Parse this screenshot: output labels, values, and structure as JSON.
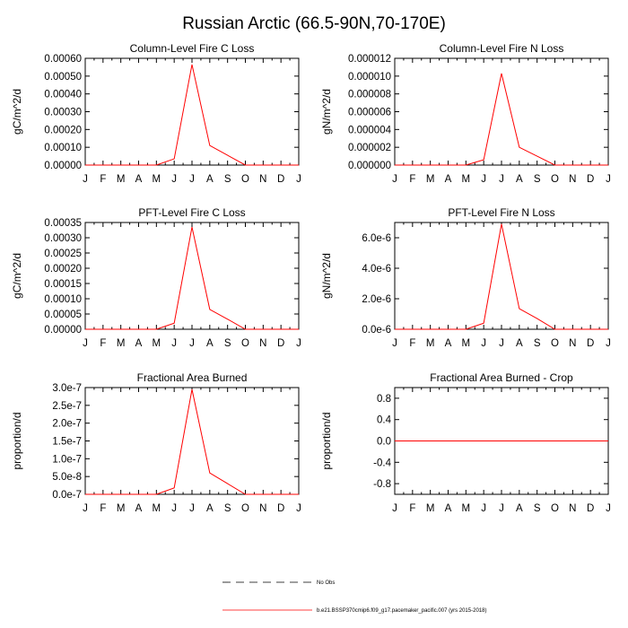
{
  "title": "Russian Arctic (66.5-90N,70-170E)",
  "colors": {
    "series": "#ff0000",
    "axis": "#000000"
  },
  "legend": [
    {
      "label": "No Obs",
      "style": "dashed",
      "color": "#000000"
    },
    {
      "label": "b.e21.BSSP370cmip6.f09_g17.pacemaker_pacific.007 (yrs 2015-2018)",
      "style": "solid",
      "color": "#ff0000"
    }
  ],
  "chart_data": [
    {
      "type": "line",
      "title": "Column-Level Fire C Loss",
      "xlabel": "",
      "ylabel": "gC/m^2/d",
      "categories": [
        "J",
        "F",
        "M",
        "A",
        "M",
        "J",
        "J",
        "A",
        "S",
        "O",
        "N",
        "D",
        "J"
      ],
      "ylim": [
        0,
        0.0006
      ],
      "yticks": [
        0,
        0.0001,
        0.0002,
        0.0003,
        0.0004,
        0.0005,
        0.0006
      ],
      "yticklabels": [
        "0.00000",
        "0.00010",
        "0.00020",
        "0.00030",
        "0.00040",
        "0.00050",
        "0.00060"
      ],
      "series": [
        {
          "name": "b.e21.BSSP370cmip6.f09_g17.pacemaker_pacific.007 (yrs 2015-2018)",
          "values": [
            0,
            0,
            0,
            0,
            0,
            3.5e-05,
            0.000565,
            0.00011,
            5.5e-05,
            0,
            0,
            0,
            0
          ]
        }
      ]
    },
    {
      "type": "line",
      "title": "Column-Level Fire N Loss",
      "xlabel": "",
      "ylabel": "gN/m^2/d",
      "categories": [
        "J",
        "F",
        "M",
        "A",
        "M",
        "J",
        "J",
        "A",
        "S",
        "O",
        "N",
        "D",
        "J"
      ],
      "ylim": [
        0,
        1.2e-05
      ],
      "yticks": [
        0,
        2e-06,
        4e-06,
        6e-06,
        8e-06,
        1e-05,
        1.2e-05
      ],
      "yticklabels": [
        "0.000000",
        "0.000002",
        "0.000004",
        "0.000006",
        "0.000008",
        "0.000010",
        "0.000012"
      ],
      "series": [
        {
          "name": "b.e21.BSSP370cmip6.f09_g17.pacemaker_pacific.007 (yrs 2015-2018)",
          "values": [
            0,
            0,
            0,
            0,
            0,
            6e-07,
            1.03e-05,
            2e-06,
            1e-06,
            0,
            0,
            0,
            0
          ]
        }
      ]
    },
    {
      "type": "line",
      "title": "PFT-Level Fire C Loss",
      "xlabel": "",
      "ylabel": "gC/m^2/d",
      "categories": [
        "J",
        "F",
        "M",
        "A",
        "M",
        "J",
        "J",
        "A",
        "S",
        "O",
        "N",
        "D",
        "J"
      ],
      "ylim": [
        0,
        0.00035
      ],
      "yticks": [
        0,
        5e-05,
        0.0001,
        0.00015,
        0.0002,
        0.00025,
        0.0003,
        0.00035
      ],
      "yticklabels": [
        "0.00000",
        "0.00005",
        "0.00010",
        "0.00015",
        "0.00020",
        "0.00025",
        "0.00030",
        "0.00035"
      ],
      "series": [
        {
          "name": "b.e21.BSSP370cmip6.f09_g17.pacemaker_pacific.007 (yrs 2015-2018)",
          "values": [
            0,
            0,
            0,
            0,
            0,
            2e-05,
            0.000335,
            6.5e-05,
            3.3e-05,
            0,
            0,
            0,
            0
          ]
        }
      ]
    },
    {
      "type": "line",
      "title": "PFT-Level Fire N Loss",
      "xlabel": "",
      "ylabel": "gN/m^2/d",
      "categories": [
        "J",
        "F",
        "M",
        "A",
        "M",
        "J",
        "J",
        "A",
        "S",
        "O",
        "N",
        "D",
        "J"
      ],
      "ylim": [
        0,
        7e-06
      ],
      "yticks": [
        0,
        2e-06,
        4e-06,
        6e-06
      ],
      "yticklabels": [
        "0.0e-6",
        "2.0e-6",
        "4.0e-6",
        "6.0e-6"
      ],
      "series": [
        {
          "name": "b.e21.BSSP370cmip6.f09_g17.pacemaker_pacific.007 (yrs 2015-2018)",
          "values": [
            0,
            0,
            0,
            0,
            0,
            4e-07,
            6.9e-06,
            1.35e-06,
            7e-07,
            0,
            0,
            0,
            0
          ]
        }
      ]
    },
    {
      "type": "line",
      "title": "Fractional Area Burned",
      "xlabel": "",
      "ylabel": "proportion/d",
      "categories": [
        "J",
        "F",
        "M",
        "A",
        "M",
        "J",
        "J",
        "A",
        "S",
        "O",
        "N",
        "D",
        "J"
      ],
      "ylim": [
        0,
        3e-07
      ],
      "yticks": [
        0,
        5e-08,
        1e-07,
        1.5e-07,
        2e-07,
        2.5e-07,
        3e-07
      ],
      "yticklabels": [
        "0.0e-7",
        "5.0e-8",
        "1.0e-7",
        "1.5e-7",
        "2.0e-7",
        "2.5e-7",
        "3.0e-7"
      ],
      "series": [
        {
          "name": "b.e21.BSSP370cmip6.f09_g17.pacemaker_pacific.007 (yrs 2015-2018)",
          "values": [
            0,
            0,
            0,
            0,
            0,
            1.8e-08,
            2.95e-07,
            6e-08,
            3e-08,
            0,
            0,
            0,
            0
          ]
        }
      ]
    },
    {
      "type": "line",
      "title": "Fractional Area Burned - Crop",
      "xlabel": "",
      "ylabel": "proportion/d",
      "categories": [
        "J",
        "F",
        "M",
        "A",
        "M",
        "J",
        "J",
        "A",
        "S",
        "O",
        "N",
        "D",
        "J"
      ],
      "ylim": [
        -1.0,
        1.0
      ],
      "yticks": [
        -0.8,
        -0.4,
        0.0,
        0.4,
        0.8
      ],
      "yticklabels": [
        "-0.8",
        "-0.4",
        "0.0",
        "0.4",
        "0.8"
      ],
      "series": [
        {
          "name": "b.e21.BSSP370cmip6.f09_g17.pacemaker_pacific.007 (yrs 2015-2018)",
          "values": [
            0,
            0,
            0,
            0,
            0,
            0,
            0,
            0,
            0,
            0,
            0,
            0,
            0
          ]
        }
      ]
    }
  ]
}
